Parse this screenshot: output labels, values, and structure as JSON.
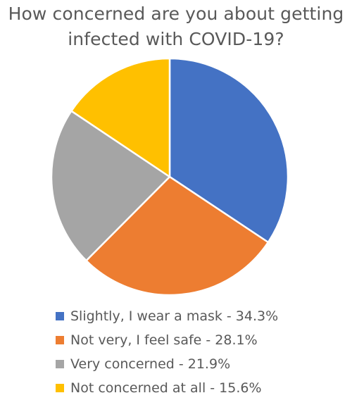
{
  "chart_data": {
    "type": "pie",
    "title_lines": [
      "How concerned are you about getting",
      "infected with COVID-19?"
    ],
    "legend_position": "bottom",
    "slices": [
      {
        "label": "Slightly, I wear a mask - 34.3%",
        "value": 34.3,
        "color": "#4472C4"
      },
      {
        "label": "Not very, I feel safe - 28.1%",
        "value": 28.1,
        "color": "#ED7D31"
      },
      {
        "label": "Very concerned - 21.9%",
        "value": 21.9,
        "color": "#A5A5A5"
      },
      {
        "label": "Not concerned at all - 15.6%",
        "value": 15.6,
        "color": "#FFC000"
      }
    ]
  }
}
